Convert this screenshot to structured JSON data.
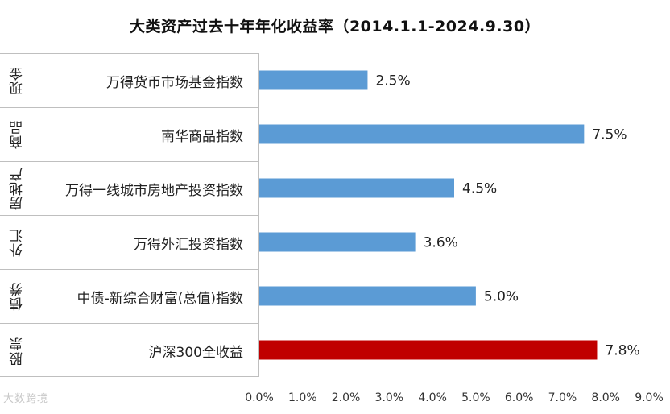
{
  "chart_data": {
    "type": "bar",
    "orientation": "horizontal",
    "title": "大类资产过去十年年化收益率（2014.1.1-2024.9.30）",
    "rows": [
      {
        "category": "现金",
        "index": "万得货币市场基金指数",
        "value": 2.5,
        "label": "2.5%",
        "color": "#5b9bd5"
      },
      {
        "category": "商品",
        "index": "南华商品指数",
        "value": 7.5,
        "label": "7.5%",
        "color": "#5b9bd5"
      },
      {
        "category": "房地产",
        "index": "万得一线城市房地产投资指数",
        "value": 4.5,
        "label": "4.5%",
        "color": "#5b9bd5"
      },
      {
        "category": "外汇",
        "index": "万得外汇投资指数",
        "value": 3.6,
        "label": "3.6%",
        "color": "#5b9bd5"
      },
      {
        "category": "债券",
        "index": "中债-新综合财富(总值)指数",
        "value": 5.0,
        "label": "5.0%",
        "color": "#5b9bd5"
      },
      {
        "category": "股票",
        "index": "沪深300全收益",
        "value": 7.8,
        "label": "7.8%",
        "color": "#c00000"
      }
    ],
    "xlim": [
      0,
      9
    ],
    "ticks": [
      "0.0%",
      "1.0%",
      "2.0%",
      "3.0%",
      "4.0%",
      "5.0%",
      "6.0%",
      "7.0%",
      "8.0%",
      "9.0%"
    ],
    "grid": false,
    "legend": "none"
  },
  "watermark": "大数跨境"
}
